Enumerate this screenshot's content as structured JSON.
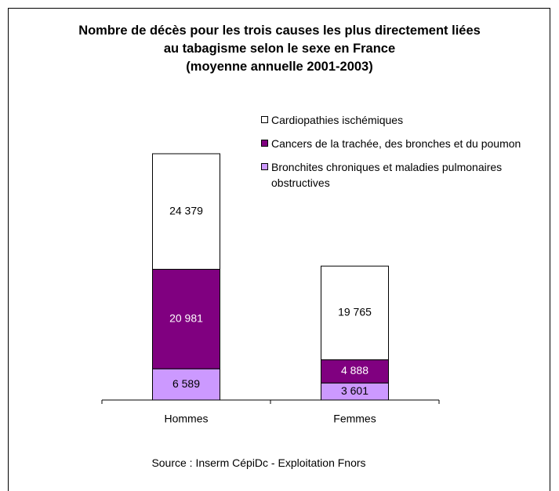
{
  "chart_data": {
    "type": "stacked_bar",
    "title": "Nombre de décès pour les trois causes les plus directement liées\nau tabagisme selon le sexe en France\n(moyenne annuelle 2001-2003)",
    "categories": [
      "Hommes",
      "Femmes"
    ],
    "series": [
      {
        "name": "Bronchites chroniques et maladies pulmonaires obstructives",
        "color": "#cc99ff",
        "values": [
          6589,
          3601
        ],
        "value_labels": [
          "6 589",
          "3 601"
        ]
      },
      {
        "name": "Cancers de la trachée, des bronches et du poumon",
        "color": "#800080",
        "values": [
          20981,
          4888
        ],
        "value_labels": [
          "20 981",
          "4 888"
        ]
      },
      {
        "name": "Cardiopathies ischémiques",
        "color": "#ffffff",
        "values": [
          24379,
          19765
        ],
        "value_labels": [
          "24 379",
          "19 765"
        ]
      }
    ],
    "source": "Source : Inserm CépiDc - Exploitation Fnors"
  }
}
